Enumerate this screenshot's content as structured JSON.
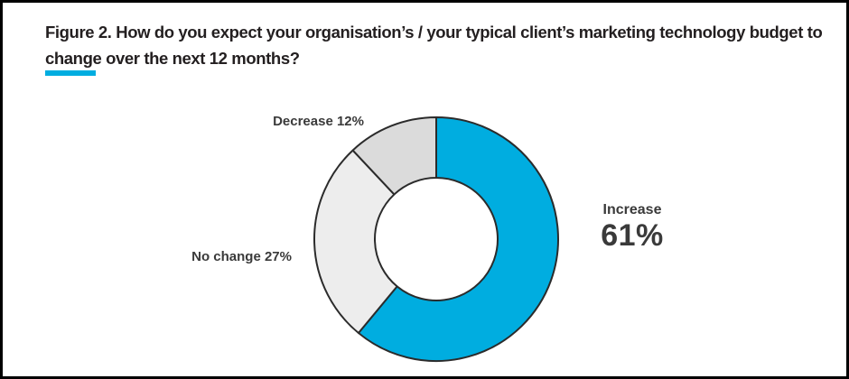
{
  "page": {
    "background_color": "#ffffff",
    "border_color": "#000000"
  },
  "header": {
    "title": "Figure 2. How do you expect your organisation’s / your typical client’s marketing technology budget to change over the next 12 months?",
    "accent_color": "#00ADE0"
  },
  "chart_data": {
    "type": "pie",
    "subtype": "donut",
    "title": "Figure 2. How do you expect your organisation’s / your typical client’s marketing technology budget to change over the next 12 months?",
    "categories": [
      "Increase",
      "No change",
      "Decrease"
    ],
    "values": [
      61,
      27,
      12
    ],
    "unit": "%",
    "colors": [
      "#00ADE0",
      "#EDEDED",
      "#DBDBDB"
    ],
    "stroke_color": "#2b2b2b",
    "stroke_width": 2,
    "start_angle_deg": 0,
    "clockwise": true,
    "outer_radius": 135,
    "inner_radius": 68,
    "legend_position": "none",
    "labels": {
      "decrease": "Decrease 12%",
      "no_change": "No change 27%",
      "increase_name": "Increase",
      "increase_value": "61%"
    }
  }
}
